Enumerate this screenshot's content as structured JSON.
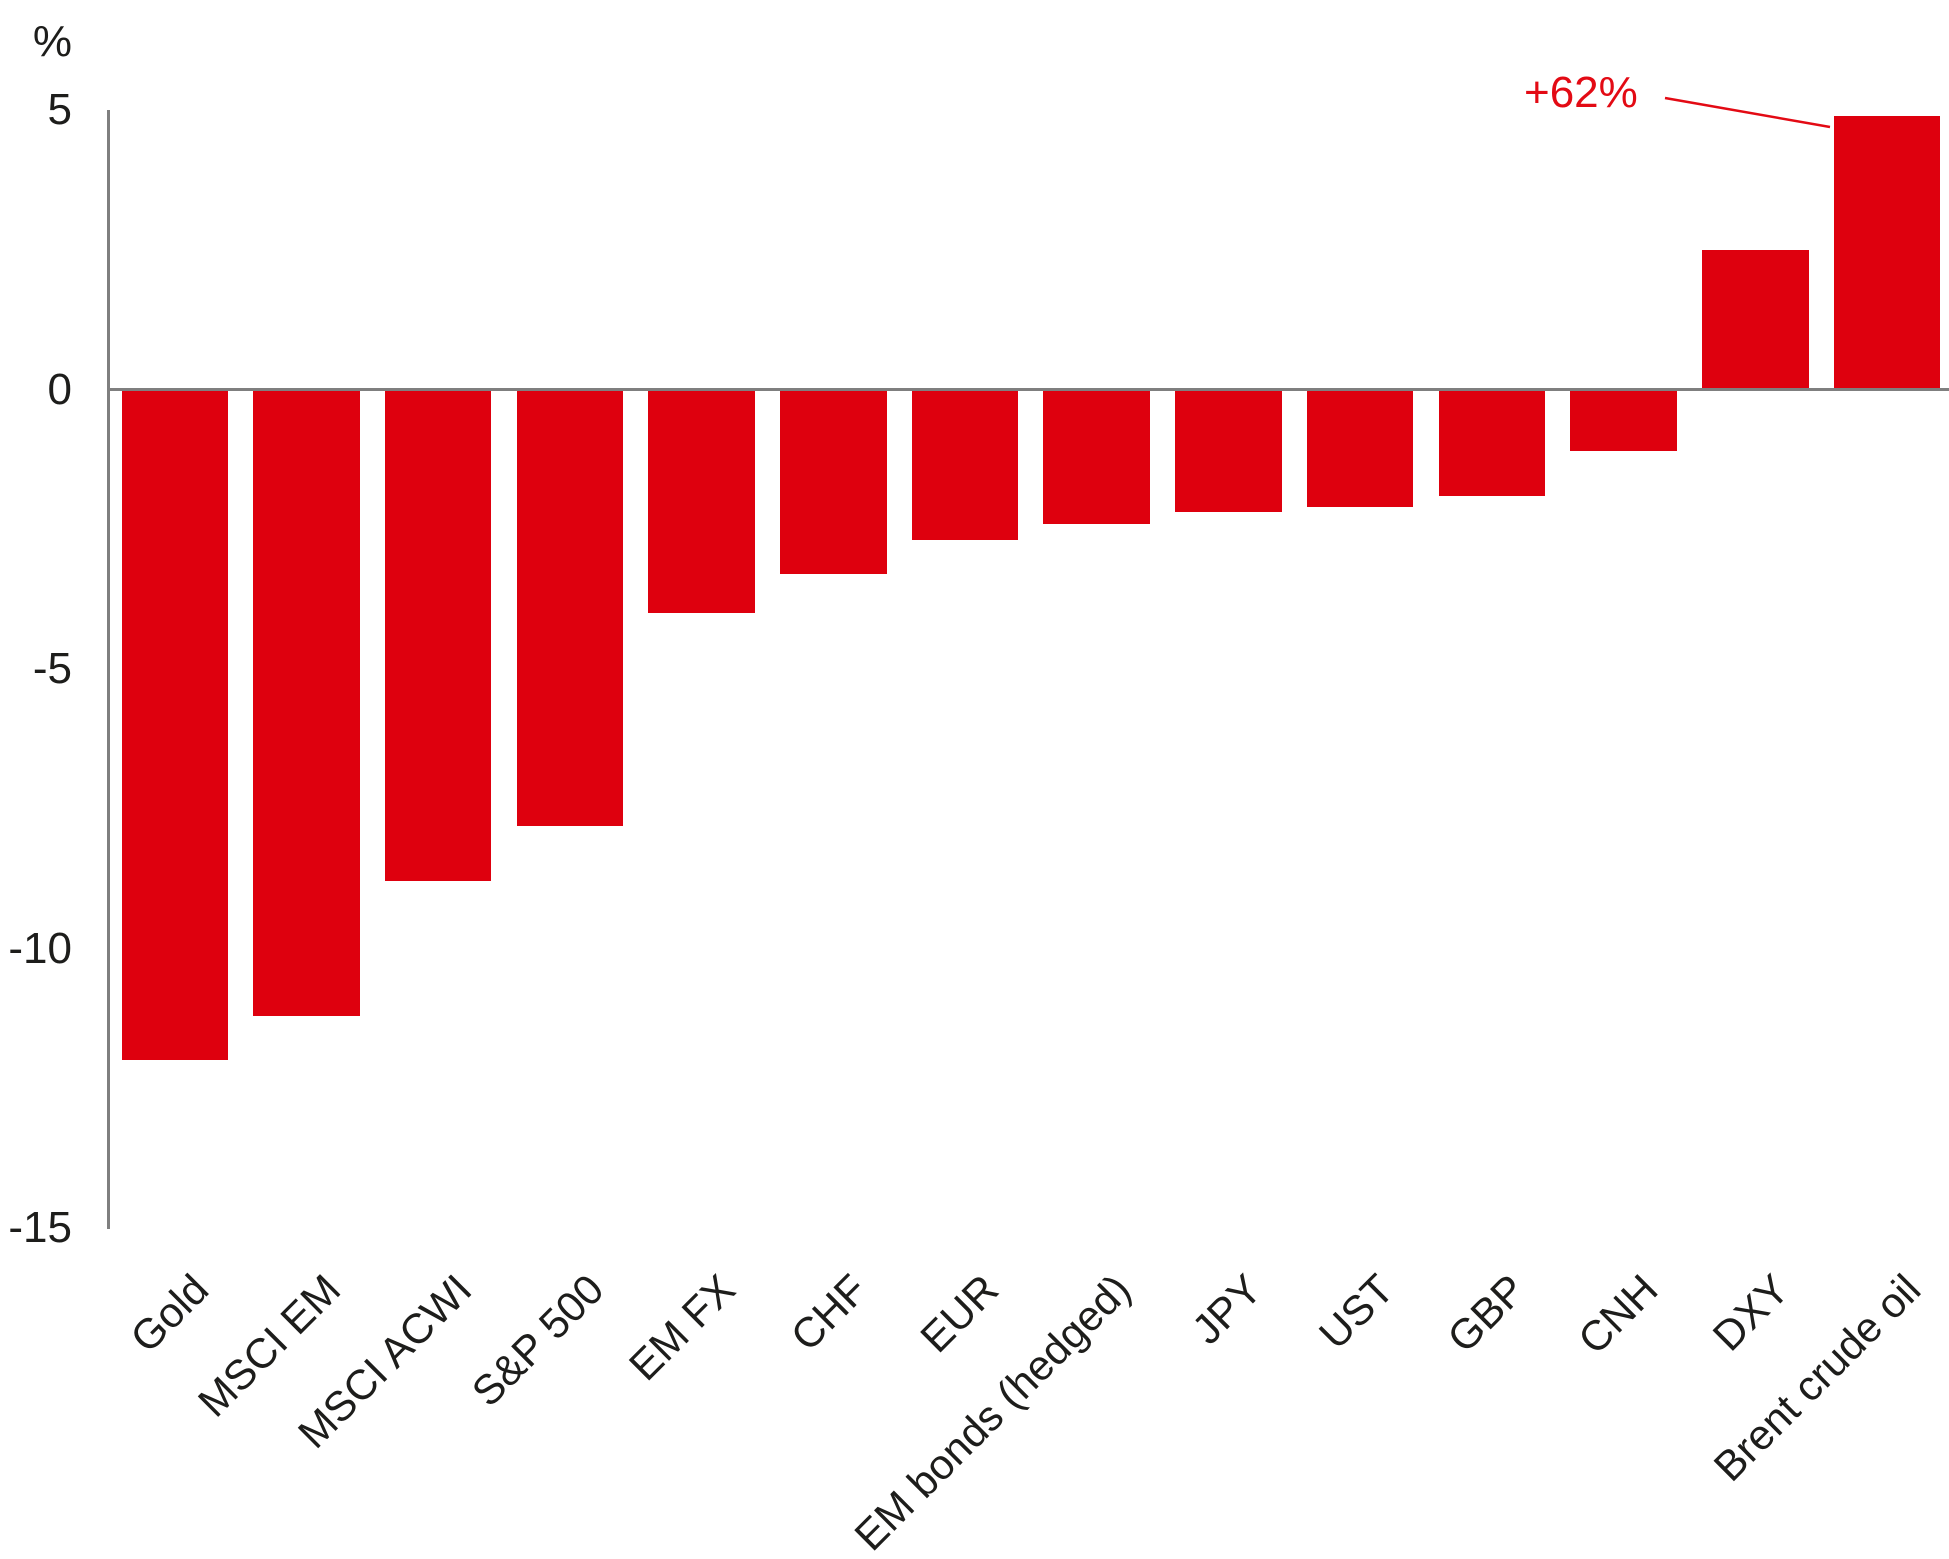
{
  "chart_data": {
    "type": "bar",
    "title": "",
    "unit_label": "%",
    "bar_color": "#de000e",
    "axis_color": "#7f7f7f",
    "text_color": "#1d1d1b",
    "ylim_display": [
      -15,
      5
    ],
    "yticks": [
      5,
      0,
      -5,
      -10,
      -15
    ],
    "grid": "off",
    "categories": [
      "Gold",
      "MSCI EM",
      "MSCI ACWI",
      "S&P 500",
      "EM FX",
      "CHF",
      "EUR",
      "EM bonds (hedged)",
      "JPY",
      "UST",
      "GBP",
      "CNH",
      "DXY",
      "Brent crude oil"
    ],
    "bars": [
      {
        "label": "Gold",
        "value": -12.0
      },
      {
        "label": "MSCI EM",
        "value": -11.2
      },
      {
        "label": "MSCI ACWI",
        "value": -8.8
      },
      {
        "label": "S&P 500",
        "value": -7.8
      },
      {
        "label": "EM FX",
        "value": -4.0
      },
      {
        "label": "CHF",
        "value": -3.3
      },
      {
        "label": "EUR",
        "value": -2.7
      },
      {
        "label": "EM bonds (hedged)",
        "value": -2.4
      },
      {
        "label": "JPY",
        "value": -2.2
      },
      {
        "label": "UST",
        "value": -2.1
      },
      {
        "label": "GBP",
        "value": -1.9
      },
      {
        "label": "CNH",
        "value": -1.1
      },
      {
        "label": "DXY",
        "value": 2.5
      },
      {
        "label": "Brent crude oil",
        "value": 62,
        "display_value": 4.9,
        "clipped": true
      }
    ],
    "annotation": {
      "text": "+62%",
      "target_category": "Brent crude oil",
      "color": "#e30a14"
    }
  }
}
